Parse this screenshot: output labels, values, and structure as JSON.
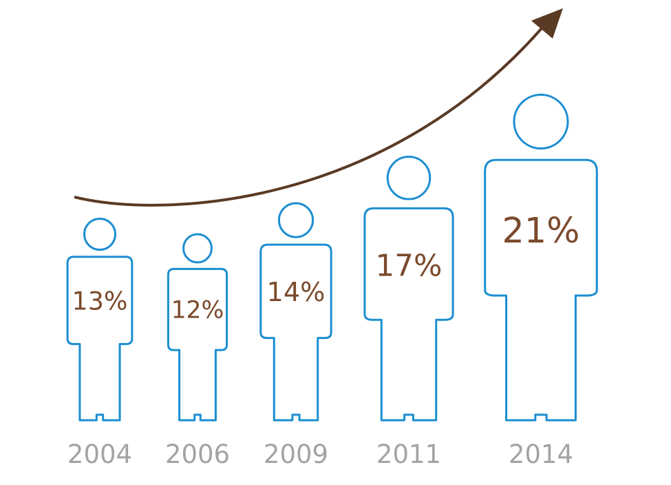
{
  "chart_data": {
    "type": "pictogram",
    "categories": [
      "2004",
      "2006",
      "2009",
      "2011",
      "2014"
    ],
    "values": [
      13,
      12,
      14,
      17,
      21
    ],
    "value_labels": [
      "13%",
      "12%",
      "14%",
      "17%",
      "21%"
    ],
    "color": "#1b8ed1"
  }
}
